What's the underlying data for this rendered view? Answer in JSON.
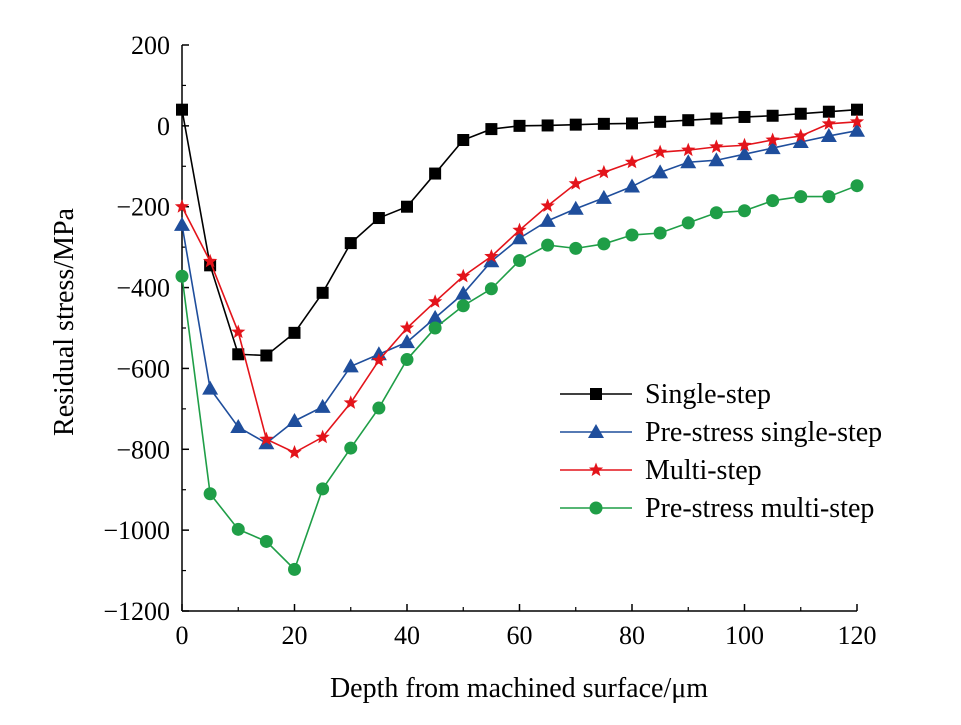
{
  "chart_data": {
    "type": "line",
    "xlabel": "Depth from machined surface/μm",
    "ylabel": "Residual stress/MPa",
    "xlim": [
      0,
      120
    ],
    "ylim": [
      -1200,
      200
    ],
    "xticks": [
      0,
      20,
      40,
      60,
      80,
      100,
      120
    ],
    "yticks": [
      200,
      0,
      -200,
      -400,
      -600,
      -800,
      -1000,
      -1200
    ],
    "xtick_labels": [
      "0",
      "20",
      "40",
      "60",
      "80",
      "100",
      "120"
    ],
    "ytick_labels": [
      "200",
      "0",
      "−200",
      "−400",
      "−600",
      "−800",
      "−1000",
      "−1200"
    ],
    "grid": false,
    "legend_position": "lower-right",
    "x": [
      0,
      5,
      10,
      15,
      20,
      25,
      30,
      35,
      40,
      45,
      50,
      55,
      60,
      65,
      70,
      75,
      80,
      85,
      90,
      95,
      100,
      105,
      110,
      115,
      120
    ],
    "series": [
      {
        "name": "Single-step",
        "color": "#000000",
        "marker": "square",
        "values": [
          40,
          -345,
          -565,
          -568,
          -512,
          -413,
          -290,
          -228,
          -200,
          -118,
          -35,
          -8,
          0,
          1,
          3,
          5,
          6,
          10,
          14,
          18,
          22,
          25,
          30,
          35,
          40
        ]
      },
      {
        "name": "Pre-stress single-step",
        "color": "#1f4e9c",
        "marker": "triangle",
        "values": [
          -245,
          -650,
          -745,
          -785,
          -730,
          -695,
          -595,
          -565,
          -535,
          -475,
          -415,
          -335,
          -278,
          -235,
          -205,
          -178,
          -150,
          -115,
          -90,
          -85,
          -70,
          -55,
          -40,
          -25,
          -12
        ]
      },
      {
        "name": "Multi-step",
        "color": "#e3141b",
        "marker": "star",
        "values": [
          -200,
          -335,
          -510,
          -775,
          -808,
          -770,
          -685,
          -580,
          -500,
          -435,
          -372,
          -323,
          -258,
          -198,
          -143,
          -115,
          -90,
          -65,
          -60,
          -52,
          -48,
          -35,
          -25,
          5,
          10
        ]
      },
      {
        "name": "Pre-stress multi-step",
        "color": "#1f9e47",
        "marker": "circle",
        "values": [
          -372,
          -910,
          -998,
          -1028,
          -1097,
          -898,
          -797,
          -698,
          -578,
          -500,
          -445,
          -403,
          -333,
          -295,
          -303,
          -292,
          -270,
          -265,
          -240,
          -215,
          -210,
          -185,
          -175,
          -175,
          -148
        ]
      }
    ]
  }
}
